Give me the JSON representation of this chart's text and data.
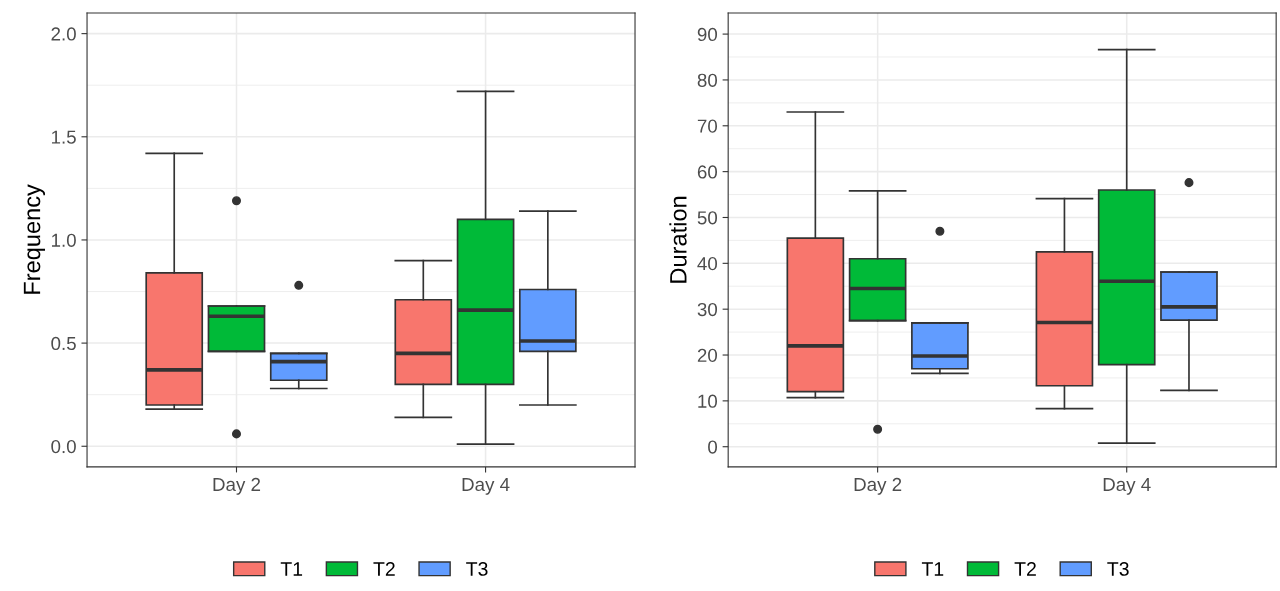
{
  "chart_data": [
    {
      "type": "box",
      "ylabel": "Frequency",
      "categories": [
        "Day 2",
        "Day 4"
      ],
      "ylim": [
        -0.1,
        2.1
      ],
      "yticks": [
        {
          "value": 0,
          "label": "0.0"
        },
        {
          "value": 0.5,
          "label": "0.5"
        },
        {
          "value": 1,
          "label": "1.0"
        },
        {
          "value": 1.5,
          "label": "1.5"
        },
        {
          "value": 2,
          "label": "2.0"
        }
      ],
      "grid": true,
      "legend": "bottom",
      "series": [
        {
          "name": "T1",
          "color": "#f8766d",
          "boxes": [
            {
              "low": 0.18,
              "q1": 0.2,
              "median": 0.37,
              "q3": 0.84,
              "high": 1.42
            },
            {
              "low": 0.14,
              "q1": 0.3,
              "median": 0.45,
              "q3": 0.71,
              "high": 0.9
            }
          ]
        },
        {
          "name": "T2",
          "color": "#00ba38",
          "boxes": [
            {
              "low": 0.46,
              "q1": 0.46,
              "median": 0.63,
              "q3": 0.68,
              "high": 0.68,
              "outliers": [
                1.19,
                0.06
              ]
            },
            {
              "low": 0.01,
              "q1": 0.3,
              "median": 0.66,
              "q3": 1.1,
              "high": 1.72
            }
          ]
        },
        {
          "name": "T3",
          "color": "#619cff",
          "boxes": [
            {
              "low": 0.28,
              "q1": 0.32,
              "median": 0.41,
              "q3": 0.45,
              "high": 0.45,
              "outliers": [
                0.78
              ]
            },
            {
              "low": 0.2,
              "q1": 0.46,
              "median": 0.51,
              "q3": 0.76,
              "high": 1.14
            }
          ]
        }
      ]
    },
    {
      "type": "box",
      "ylabel": "Duration",
      "categories": [
        "Day 2",
        "Day 4"
      ],
      "ylim": [
        -4.4,
        94.6
      ],
      "yticks": [
        0,
        10,
        20,
        30,
        40,
        50,
        60,
        70,
        80,
        90
      ],
      "grid": true,
      "legend": "bottom",
      "series": [
        {
          "name": "T1",
          "color": "#f8766d",
          "boxes": [
            {
              "low": 10.7,
              "q1": 12,
              "median": 22,
              "q3": 45.5,
              "high": 73
            },
            {
              "low": 8.3,
              "q1": 13.3,
              "median": 27.1,
              "q3": 42.5,
              "high": 54.1
            }
          ]
        },
        {
          "name": "T2",
          "color": "#00ba38",
          "boxes": [
            {
              "low": 27.5,
              "q1": 27.5,
              "median": 34.5,
              "q3": 41,
              "high": 55.8,
              "outliers": [
                3.8
              ]
            },
            {
              "low": 0.8,
              "q1": 17.9,
              "median": 36.1,
              "q3": 56,
              "high": 86.6
            }
          ]
        },
        {
          "name": "T3",
          "color": "#619cff",
          "boxes": [
            {
              "low": 16,
              "q1": 17,
              "median": 19.8,
              "q3": 27,
              "high": 27,
              "outliers": [
                47
              ]
            },
            {
              "low": 12.3,
              "q1": 27.6,
              "median": 30.5,
              "q3": 38.1,
              "high": 38.1,
              "outliers": [
                57.6
              ]
            }
          ]
        }
      ]
    }
  ]
}
